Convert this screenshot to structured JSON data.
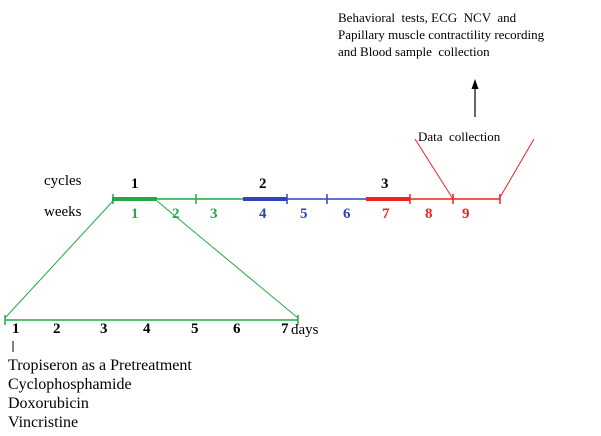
{
  "outcomes_lines": [
    "Behavioral  tests, ECG  NCV  and",
    "Papillary muscle contractility recording",
    "and Blood sample  collection"
  ],
  "data_collection_label": "Data  collection",
  "cycles_label": "cycles",
  "weeks_label": "weeks",
  "cycles": [
    "1",
    "2",
    "3"
  ],
  "weeks": [
    "1",
    "2",
    "3",
    "4",
    "5",
    "6",
    "7",
    "8",
    "9"
  ],
  "days": [
    "1",
    "2",
    "3",
    "4",
    "5",
    "6",
    "7"
  ],
  "days_unit": "days",
  "treatments": [
    "Tropiseron as a Pretreatment",
    "Cyclophosphamide",
    "Doxorubicin",
    "Vincristine"
  ],
  "colors": {
    "cycle1": "#22aa44",
    "cycle2": "#3344bb",
    "cycle3": "#ee2222",
    "text": "#000000"
  }
}
